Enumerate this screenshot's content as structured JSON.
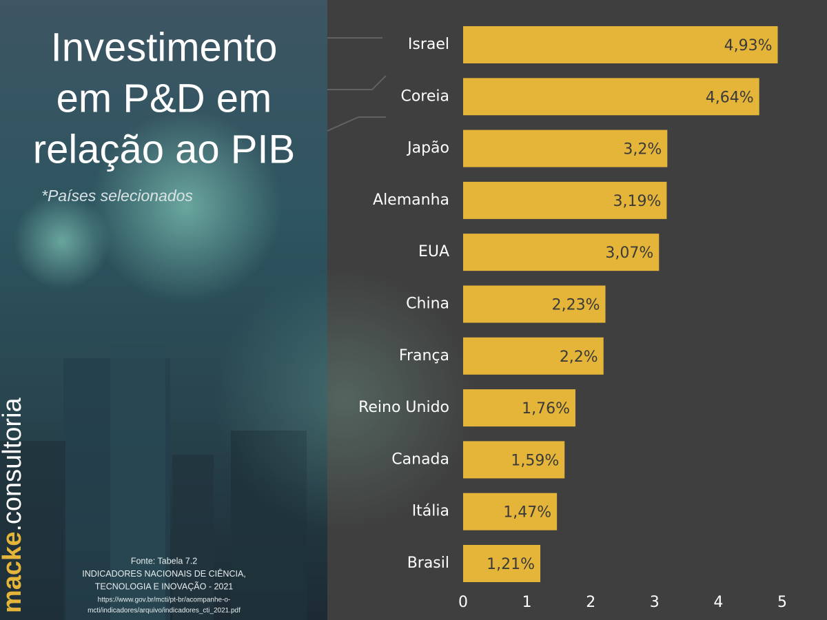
{
  "chart_data": {
    "type": "bar",
    "orientation": "horizontal",
    "title": [
      "Investimento",
      "em P&D em",
      "relação ao PIB"
    ],
    "subtitle": "*Países selecionados",
    "source": [
      "Fonte: Tabela 7.2",
      "INDICADORES NACIONAIS DE CIÊNCIA,",
      "TECNOLOGIA E INOVAÇÃO - 2021",
      "https://www.gov.br/mcti/pt-br/acompanhe-o-",
      "mcti/indicadores/arquivo/indicadores_cti_2021.pdf"
    ],
    "logo": {
      "brand": "macke",
      "suffix": ".consultoria"
    },
    "categories": [
      "Israel",
      "Coreia",
      "Japão",
      "Alemanha",
      "EUA",
      "China",
      "França",
      "Reino Unido",
      "Canada",
      "Itália",
      "Brasil"
    ],
    "values": [
      4.93,
      4.64,
      3.2,
      3.19,
      3.07,
      2.23,
      2.2,
      1.76,
      1.59,
      1.47,
      1.21
    ],
    "value_labels": [
      "4,93%",
      "4,64%",
      "3,2%",
      "3,19%",
      "3,07%",
      "2,23%",
      "2,2%",
      "1,76%",
      "1,59%",
      "1,47%",
      "1,21%"
    ],
    "color": "#e5b53a",
    "xlim": [
      0,
      5
    ],
    "xticks": [
      0,
      1,
      2,
      3,
      4,
      5
    ]
  }
}
